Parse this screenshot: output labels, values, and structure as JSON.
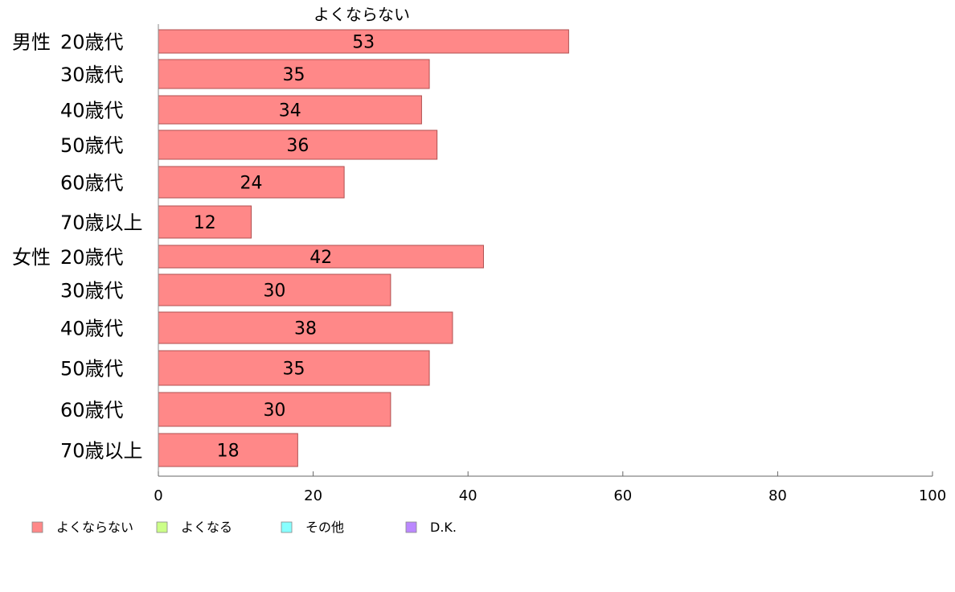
{
  "chart_data": {
    "type": "bar",
    "orientation": "horizontal",
    "title": "よくならない",
    "groups": [
      {
        "label": "男性",
        "categories": [
          "20歳代",
          "30歳代",
          "40歳代",
          "50歳代",
          "60歳代",
          "70歳以上"
        ],
        "values": [
          53,
          35,
          34,
          36,
          24,
          12
        ]
      },
      {
        "label": "女性",
        "categories": [
          "20歳代",
          "30歳代",
          "40歳代",
          "50歳代",
          "60歳代",
          "70歳以上"
        ],
        "values": [
          42,
          30,
          38,
          35,
          30,
          18
        ]
      }
    ],
    "xlim": [
      0,
      100
    ],
    "xticks": [
      "0",
      "20",
      "40",
      "60",
      "80",
      "100"
    ],
    "bar_color": "#ff8888",
    "bar_stroke": "#b05050",
    "legend": {
      "placement": "bottom-left",
      "items": [
        {
          "label": "よくならない",
          "color": "#ff8888"
        },
        {
          "label": "よくなる",
          "color": "#ccff88"
        },
        {
          "label": "その他",
          "color": "#88ffff"
        },
        {
          "label": "D.K.",
          "color": "#bb88ff"
        }
      ]
    }
  }
}
